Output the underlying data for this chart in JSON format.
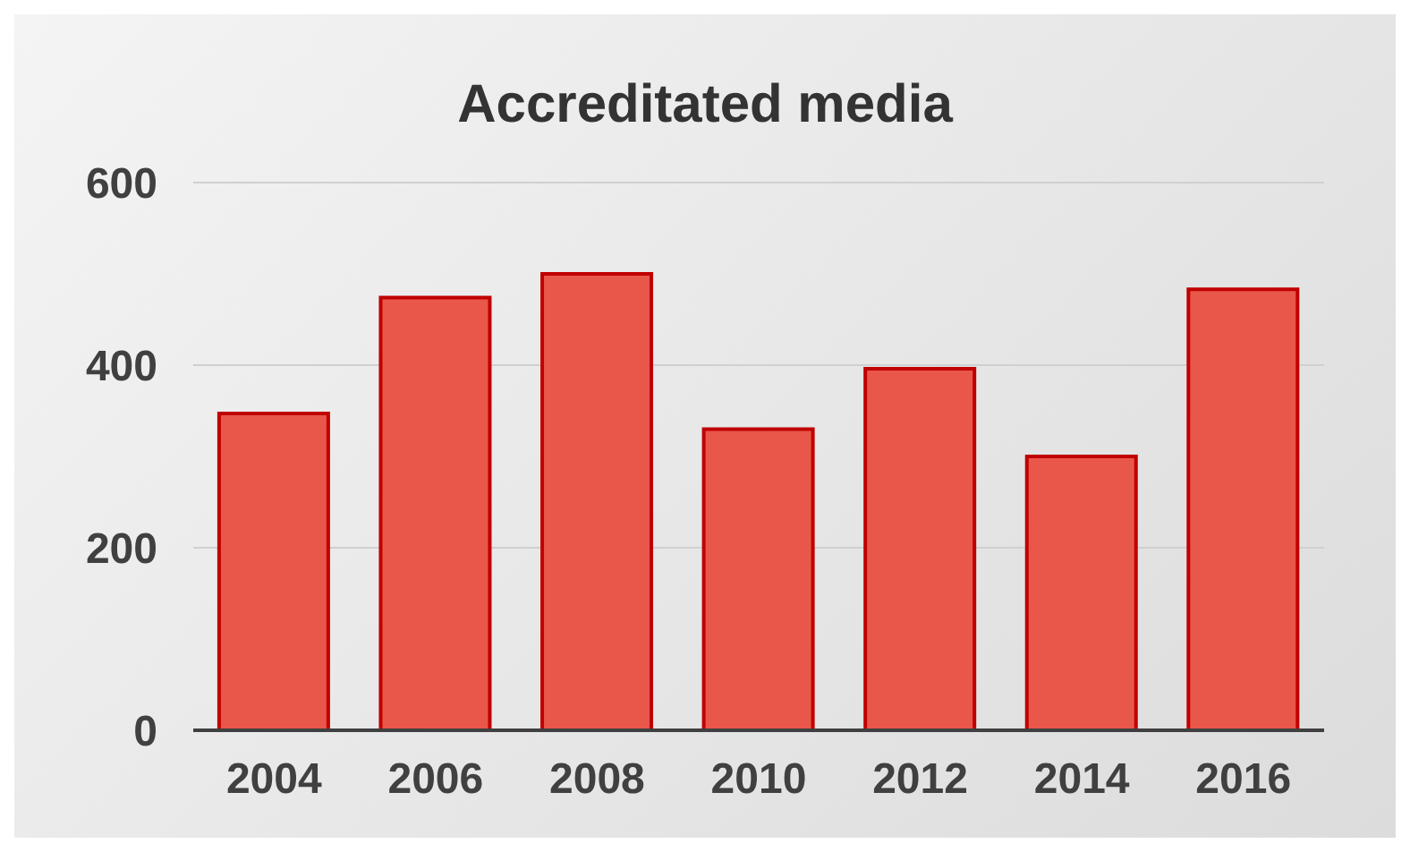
{
  "chart_data": {
    "type": "bar",
    "title": "Accreditated media",
    "categories": [
      "2004",
      "2006",
      "2008",
      "2010",
      "2012",
      "2014",
      "2016"
    ],
    "values": [
      347,
      474,
      500,
      330,
      396,
      300,
      483
    ],
    "color": "#e8574a",
    "ylim": [
      0,
      600
    ],
    "yticks": [
      0,
      200,
      400,
      600
    ],
    "grid": "y"
  }
}
